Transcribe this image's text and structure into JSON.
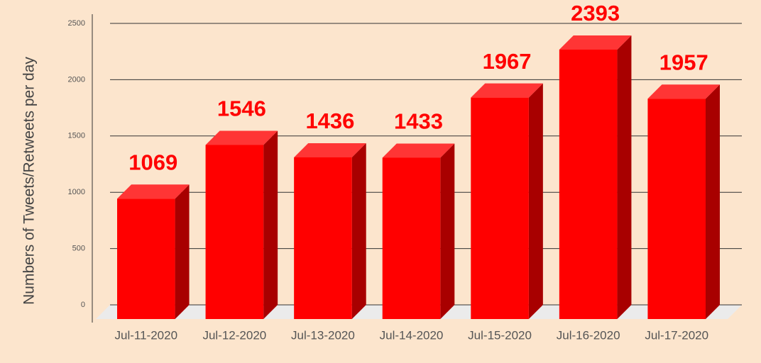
{
  "chart_data": {
    "type": "bar3d",
    "y_label": "Numbers of Tweets/Retweets per day",
    "categories": [
      "Jul-11-2020",
      "Jul-12-2020",
      "Jul-13-2020",
      "Jul-14-2020",
      "Jul-15-2020",
      "Jul-16-2020",
      "Jul-17-2020"
    ],
    "values": [
      1069,
      1546,
      1436,
      1433,
      1967,
      2393,
      1957
    ],
    "color": "#ff0000",
    "ylim": [
      0,
      2500
    ],
    "yticks": [
      0,
      500,
      1000,
      1500,
      2000,
      2500
    ],
    "grid": true
  }
}
